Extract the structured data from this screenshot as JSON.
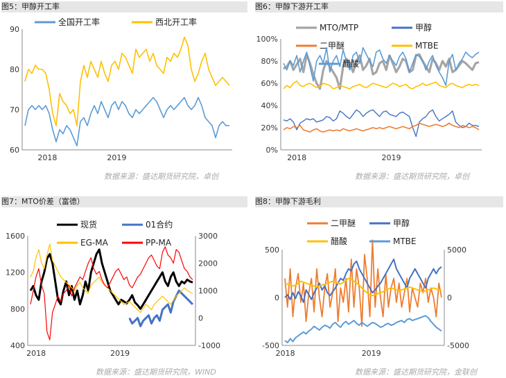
{
  "captions": [
    "图5：甲醇开工率",
    "图6：甲醇下游开工率",
    "图7：MTO价差（富德）",
    "图8：甲醇下游毛利"
  ],
  "sources": [
    "数据来源：盛达期货研究院，卓创",
    "数据来源：盛达期货研究院，卓创",
    "数据来源：盛达期货研究院，WIND",
    "数据来源：盛达期货研究院，金联创"
  ],
  "chart_data": [
    {
      "type": "line",
      "title": "",
      "x_ticks": [
        "2018",
        "2019"
      ],
      "ylim": [
        60,
        90
      ],
      "yticks": [
        "60",
        "70",
        "80",
        "90"
      ],
      "legend_position": "top",
      "series": [
        {
          "name": "全国开工率",
          "color": "#5b9bd5",
          "values": [
            66,
            70,
            71,
            70,
            71,
            70,
            71,
            69,
            65,
            62,
            65,
            64,
            66,
            65,
            63,
            61,
            67,
            68,
            66,
            69,
            71,
            69,
            72,
            70,
            68,
            71,
            72,
            70,
            72,
            71,
            69,
            68,
            70,
            69,
            70,
            71,
            72,
            73,
            72,
            70,
            68,
            70,
            71,
            70,
            71,
            72,
            73,
            71,
            70,
            71,
            73,
            71,
            68,
            67,
            66,
            63,
            66,
            67,
            66,
            66
          ]
        },
        {
          "name": "西北开工率",
          "color": "#ffc000",
          "values": [
            77,
            80,
            79,
            81,
            80,
            80,
            79,
            75,
            69,
            66,
            74,
            72,
            71,
            69,
            70,
            66,
            77,
            81,
            78,
            82,
            80,
            78,
            82,
            79,
            77,
            81,
            82,
            80,
            84,
            83,
            81,
            79,
            85,
            83,
            84,
            85,
            82,
            84,
            81,
            80,
            79,
            83,
            82,
            84,
            83,
            85,
            88,
            86,
            80,
            77,
            79,
            82,
            84,
            80,
            78,
            76,
            77,
            78,
            77,
            76
          ]
        }
      ]
    },
    {
      "type": "line",
      "title": "",
      "x_ticks": [
        "2018",
        "2019"
      ],
      "ylim": [
        0,
        100
      ],
      "yticks": [
        "0%",
        "20%",
        "40%",
        "60%",
        "80%",
        "100%"
      ],
      "legend_position": "top",
      "series": [
        {
          "name": "MTO/MTP",
          "color": "#a5a5a5",
          "values": [
            73,
            75,
            80,
            72,
            77,
            82,
            70,
            86,
            78,
            68,
            60,
            55,
            72,
            80,
            75,
            70,
            65,
            55,
            75,
            82,
            78,
            70,
            80,
            85,
            72,
            76,
            82,
            68,
            70,
            78,
            80,
            72,
            85,
            78,
            70,
            75,
            82,
            80,
            70,
            72,
            85,
            86,
            80,
            75,
            70,
            82,
            78,
            72,
            80,
            75,
            82,
            70,
            72,
            76,
            80,
            78,
            75,
            72,
            78,
            79
          ]
        },
        {
          "name": "甲醇",
          "color": "#4472c4",
          "values": [
            27,
            26,
            28,
            25,
            18,
            24,
            26,
            28,
            27,
            28,
            25,
            26,
            27,
            30,
            29,
            26,
            28,
            35,
            33,
            30,
            28,
            32,
            36,
            34,
            30,
            33,
            35,
            36,
            33,
            30,
            34,
            35,
            32,
            31,
            30,
            33,
            34,
            32,
            30,
            20,
            12,
            25,
            28,
            30,
            34,
            36,
            30,
            26,
            28,
            30,
            32,
            35,
            25,
            22,
            20,
            21,
            24,
            22,
            22,
            21
          ]
        },
        {
          "name": "二甲醚",
          "color": "#ed7d31",
          "values": [
            18,
            20,
            19,
            21,
            20,
            22,
            18,
            17,
            16,
            18,
            19,
            17,
            16,
            17,
            18,
            17,
            18,
            17,
            19,
            18,
            17,
            18,
            19,
            18,
            17,
            18,
            19,
            20,
            19,
            20,
            19,
            20,
            21,
            20,
            19,
            20,
            21,
            20,
            19,
            21,
            22,
            24,
            23,
            22,
            21,
            22,
            23,
            22,
            21,
            22,
            24,
            22,
            21,
            20,
            22,
            21,
            20,
            21,
            20,
            18
          ]
        },
        {
          "name": "MTBE",
          "color": "#ffc000",
          "values": [
            55,
            58,
            56,
            60,
            62,
            58,
            57,
            59,
            60,
            58,
            56,
            57,
            60,
            59,
            58,
            55,
            56,
            58,
            57,
            56,
            55,
            57,
            58,
            59,
            57,
            56,
            58,
            60,
            59,
            58,
            57,
            56,
            58,
            60,
            59,
            57,
            58,
            59,
            56,
            55,
            57,
            58,
            60,
            58,
            59,
            60,
            61,
            58,
            57,
            56,
            59,
            60,
            58,
            57,
            56,
            58,
            59,
            58,
            59,
            58
          ]
        },
        {
          "name": "醋酸",
          "color": "#5b9bd5",
          "values": [
            78,
            72,
            80,
            76,
            85,
            70,
            80,
            88,
            75,
            62,
            80,
            85,
            78,
            92,
            70,
            80,
            85,
            75,
            90,
            80,
            72,
            85,
            88,
            78,
            92,
            86,
            80,
            75,
            88,
            90,
            82,
            78,
            85,
            80,
            76,
            84,
            88,
            82,
            70,
            78,
            86,
            84,
            80,
            72,
            80,
            85,
            76,
            70,
            65,
            58,
            80,
            86,
            72,
            78,
            82,
            88,
            85,
            83,
            86,
            88
          ]
        }
      ]
    },
    {
      "type": "line",
      "title": "",
      "x_ticks": [
        "2018",
        "2019"
      ],
      "ylim_left": [
        400,
        1600
      ],
      "yticks_left": [
        "400",
        "800",
        "1200",
        "1600"
      ],
      "ylim_right": [
        -1000,
        3000
      ],
      "yticks_right": [
        "-1000",
        "0",
        "1000",
        "2000",
        "3000"
      ],
      "legend_position": "top",
      "series": [
        {
          "name": "现货",
          "color": "#000000",
          "axis": "left",
          "values": [
            1000,
            1050,
            950,
            900,
            1100,
            1200,
            1350,
            1400,
            1300,
            1100,
            900,
            850,
            1000,
            1100,
            950,
            1050,
            900,
            1000,
            850,
            950,
            1100,
            1000,
            1200,
            1300,
            1400,
            1450,
            1300,
            1200,
            1100,
            1000,
            950,
            900,
            850,
            900,
            880,
            860,
            900,
            950,
            870,
            840,
            800,
            850,
            900,
            950,
            1000,
            1050,
            1100,
            1150,
            1200,
            1100,
            1050,
            1150,
            1200,
            1100,
            1050,
            1100,
            1080,
            1120,
            1100,
            1090
          ]
        },
        {
          "name": "01合约",
          "color": "#4472c4",
          "axis": "right",
          "values": [
            null,
            null,
            null,
            null,
            null,
            null,
            null,
            null,
            null,
            null,
            null,
            null,
            null,
            null,
            null,
            null,
            null,
            null,
            null,
            null,
            null,
            null,
            null,
            null,
            null,
            null,
            null,
            null,
            null,
            null,
            null,
            null,
            null,
            null,
            null,
            null,
            0,
            -200,
            -100,
            0,
            -300,
            -100,
            0,
            100,
            -200,
            0,
            100,
            -100,
            300,
            400,
            500,
            200,
            600,
            800,
            1000,
            900,
            800,
            700,
            600,
            500
          ]
        },
        {
          "name": "EG-MA",
          "color": "#ffc000",
          "axis": "right",
          "values": [
            1500,
            1700,
            2200,
            2500,
            2000,
            1800,
            2300,
            2700,
            2100,
            1900,
            1700,
            1500,
            1400,
            1300,
            1200,
            1100,
            1000,
            1200,
            1300,
            1100,
            1000,
            900,
            1200,
            1300,
            1400,
            1500,
            1300,
            1200,
            1100,
            1000,
            900,
            800,
            700,
            600,
            500,
            550,
            600,
            500,
            400,
            300,
            200,
            350,
            500,
            400,
            300,
            500,
            600,
            700,
            800,
            700,
            600,
            500,
            650,
            800,
            900,
            1000,
            1100,
            1000,
            950,
            900
          ]
        },
        {
          "name": "PP-MA",
          "color": "#ff0000",
          "axis": "right",
          "values": [
            500,
            1000,
            1500,
            1800,
            1200,
            900,
            -500,
            -800,
            200,
            500,
            800,
            600,
            900,
            1000,
            1200,
            800,
            1100,
            1300,
            1500,
            1400,
            1700,
            2000,
            2200,
            1800,
            1600,
            1700,
            1400,
            1200,
            1100,
            1300,
            1500,
            1700,
            1800,
            1600,
            1400,
            1500,
            1200,
            1100,
            1300,
            1500,
            1600,
            1800,
            2000,
            2200,
            2300,
            2100,
            1900,
            1800,
            2400,
            2600,
            2300,
            2200,
            2000,
            2500,
            2400,
            2100,
            1800,
            1700,
            1500,
            1400
          ]
        }
      ]
    },
    {
      "type": "line",
      "title": "",
      "x_ticks": [
        "2018",
        "2019"
      ],
      "ylim_left": [
        -500,
        500
      ],
      "yticks_left": [
        "-500",
        "0",
        "500"
      ],
      "ylim_right": [
        -5000,
        5000
      ],
      "yticks_right": [
        "-5000",
        "0",
        "5000"
      ],
      "legend_position": "top",
      "series": [
        {
          "name": "二甲醚",
          "color": "#ed7d31",
          "axis": "left",
          "values": [
            200,
            -100,
            300,
            -200,
            100,
            250,
            -50,
            150,
            -250,
            50,
            200,
            -150,
            300,
            0,
            -200,
            100,
            250,
            -100,
            50,
            300,
            -250,
            100,
            -50,
            200,
            -150,
            400,
            -100,
            300,
            100,
            -300,
            450,
            200,
            -200,
            600,
            -100,
            300,
            0,
            -200,
            250,
            -100,
            100,
            200,
            -50,
            150,
            -100,
            50,
            200,
            -150,
            100,
            0,
            -100,
            150,
            50,
            200,
            -50,
            100,
            0,
            -200,
            150,
            0
          ]
        },
        {
          "name": "甲醇",
          "color": "#4472c4",
          "axis": "left",
          "values": [
            0,
            30,
            -20,
            50,
            -10,
            60,
            20,
            -50,
            80,
            30,
            -20,
            50,
            100,
            150,
            80,
            120,
            50,
            20,
            60,
            100,
            150,
            200,
            180,
            250,
            300,
            280,
            350,
            380,
            300,
            250,
            200,
            150,
            100,
            50,
            80,
            120,
            150,
            200,
            250,
            300,
            350,
            400,
            300,
            250,
            200,
            150,
            100,
            200,
            250,
            300,
            250,
            200,
            150,
            100,
            200,
            250,
            300,
            250,
            300,
            320
          ]
        },
        {
          "name": "醋酸",
          "color": "#ffc000",
          "axis": "right",
          "values": [
            1500,
            1400,
            1300,
            1200,
            1300,
            1500,
            1700,
            1600,
            1500,
            1400,
            1300,
            1200,
            1100,
            1200,
            1300,
            1400,
            1500,
            1600,
            1700,
            1600,
            1500,
            1400,
            1600,
            1800,
            2000,
            1900,
            1700,
            1500,
            1300,
            1000,
            700,
            500,
            300,
            200,
            300,
            400,
            500,
            600,
            800,
            900,
            1000,
            900,
            800,
            700,
            800,
            900,
            1000,
            1100,
            1000,
            900,
            800,
            700,
            600,
            700,
            800,
            900,
            1000,
            900,
            800,
            750
          ]
        },
        {
          "name": "MTBE",
          "color": "#5b9bd5",
          "axis": "right",
          "values": [
            -4500,
            -4700,
            -4300,
            -4600,
            -4200,
            -4000,
            -3800,
            -3600,
            -3800,
            -3500,
            -3300,
            -3000,
            -3200,
            -3400,
            -3100,
            -2900,
            -3000,
            -3200,
            -2800,
            -2600,
            -2900,
            -3100,
            -2700,
            -2500,
            -2800,
            -2600,
            -2400,
            -2700,
            -2900,
            -2600,
            -2800,
            -3000,
            -2800,
            -2600,
            -2700,
            -2900,
            -3100,
            -3000,
            -2800,
            -2700,
            -2900,
            -2800,
            -2600,
            -2500,
            -2400,
            -2600,
            -2300,
            -2200,
            -2400,
            -2300,
            -2200,
            -2100,
            -2000,
            -1900,
            -2100,
            -2500,
            -2800,
            -3100,
            -3300,
            -3500
          ]
        }
      ]
    }
  ]
}
